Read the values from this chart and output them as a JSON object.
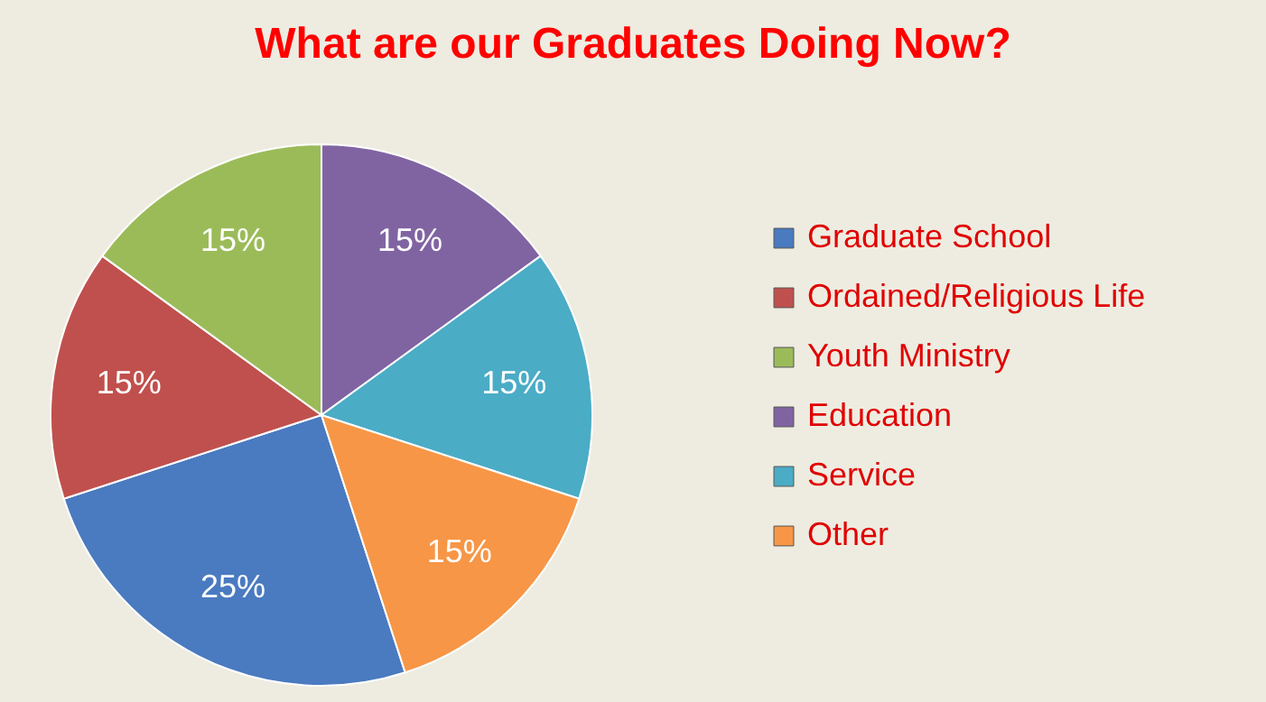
{
  "chart_data": {
    "type": "pie",
    "title": "What are our Graduates Doing Now?",
    "categories": [
      "Graduate School",
      "Ordained/Religious Life",
      "Youth Ministry",
      "Education",
      "Service",
      "Other"
    ],
    "values": [
      25,
      15,
      15,
      15,
      15,
      15
    ],
    "colors": [
      "#4a7ac0",
      "#c0504d",
      "#9bbb59",
      "#8064a2",
      "#4bacc6",
      "#f79646"
    ],
    "value_labels": [
      "25%",
      "15%",
      "15%",
      "15%",
      "15%",
      "15%"
    ],
    "legend": "right"
  }
}
